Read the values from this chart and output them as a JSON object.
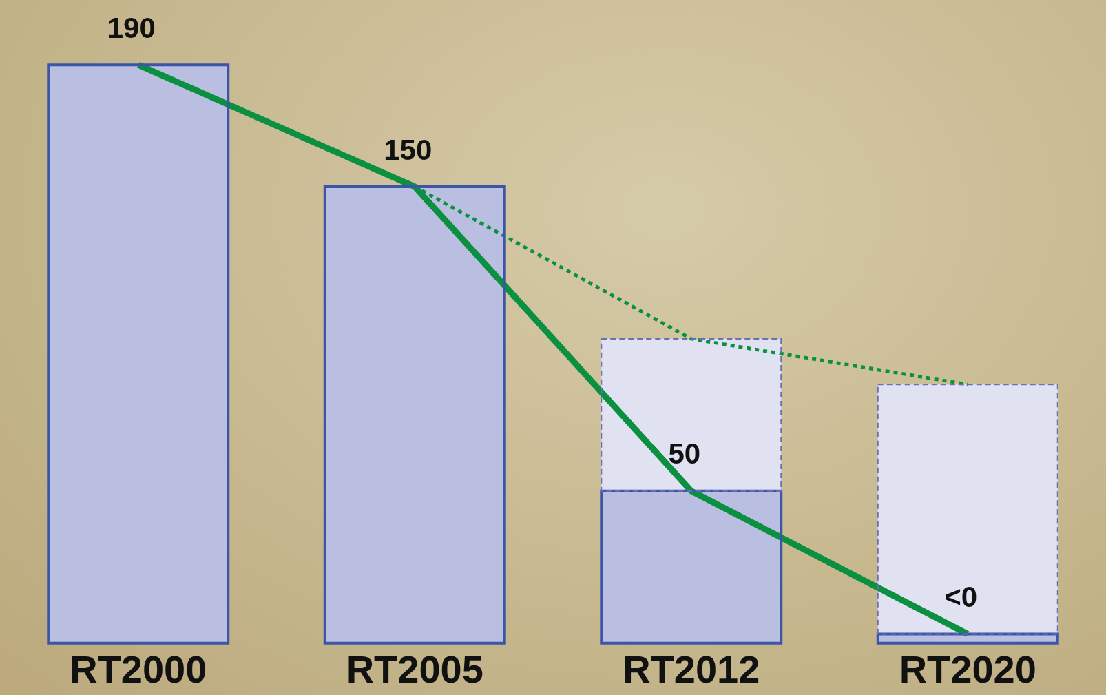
{
  "chart_data": {
    "type": "bar",
    "categories": [
      "RT2000",
      "RT2005",
      "RT2012",
      "RT2020"
    ],
    "stacked": true,
    "series": [
      {
        "color": "#babee0",
        "values": [
          190,
          150,
          50,
          3
        ],
        "value_labels": [
          "190",
          "150",
          "50",
          "<0"
        ]
      },
      {
        "color": "#e0e2f2",
        "line_style": "dashed",
        "values": [
          null,
          null,
          50,
          82
        ]
      },
      {
        "type": "line",
        "color": "#0a9040",
        "line_style": "dotted",
        "values": [
          null,
          150,
          100,
          85
        ]
      },
      {
        "type": "line",
        "color": "#0a9040",
        "line_style": "solid",
        "values": [
          190,
          150,
          50,
          3
        ]
      }
    ],
    "legend": false,
    "grid": false,
    "tick_labels": "x",
    "marker": "none"
  }
}
